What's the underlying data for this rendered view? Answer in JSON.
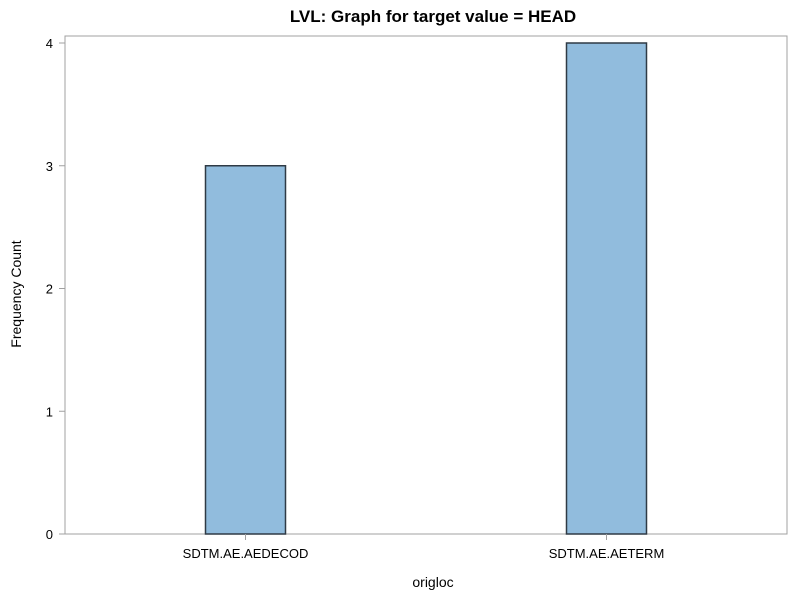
{
  "chart_data": {
    "type": "bar",
    "title": "LVL: Graph for target value = HEAD",
    "xlabel": "origloc",
    "ylabel": "Frequency Count",
    "categories": [
      "SDTM.AE.AEDECOD",
      "SDTM.AE.AETERM"
    ],
    "values": [
      3,
      4
    ],
    "ylim": [
      0,
      4
    ],
    "yticks": [
      0,
      1,
      2,
      3,
      4
    ],
    "grid": false,
    "bar_color": "#91BCDD",
    "bar_edge_color": "#2F3A45",
    "axis_color": "#A0A0A0"
  }
}
